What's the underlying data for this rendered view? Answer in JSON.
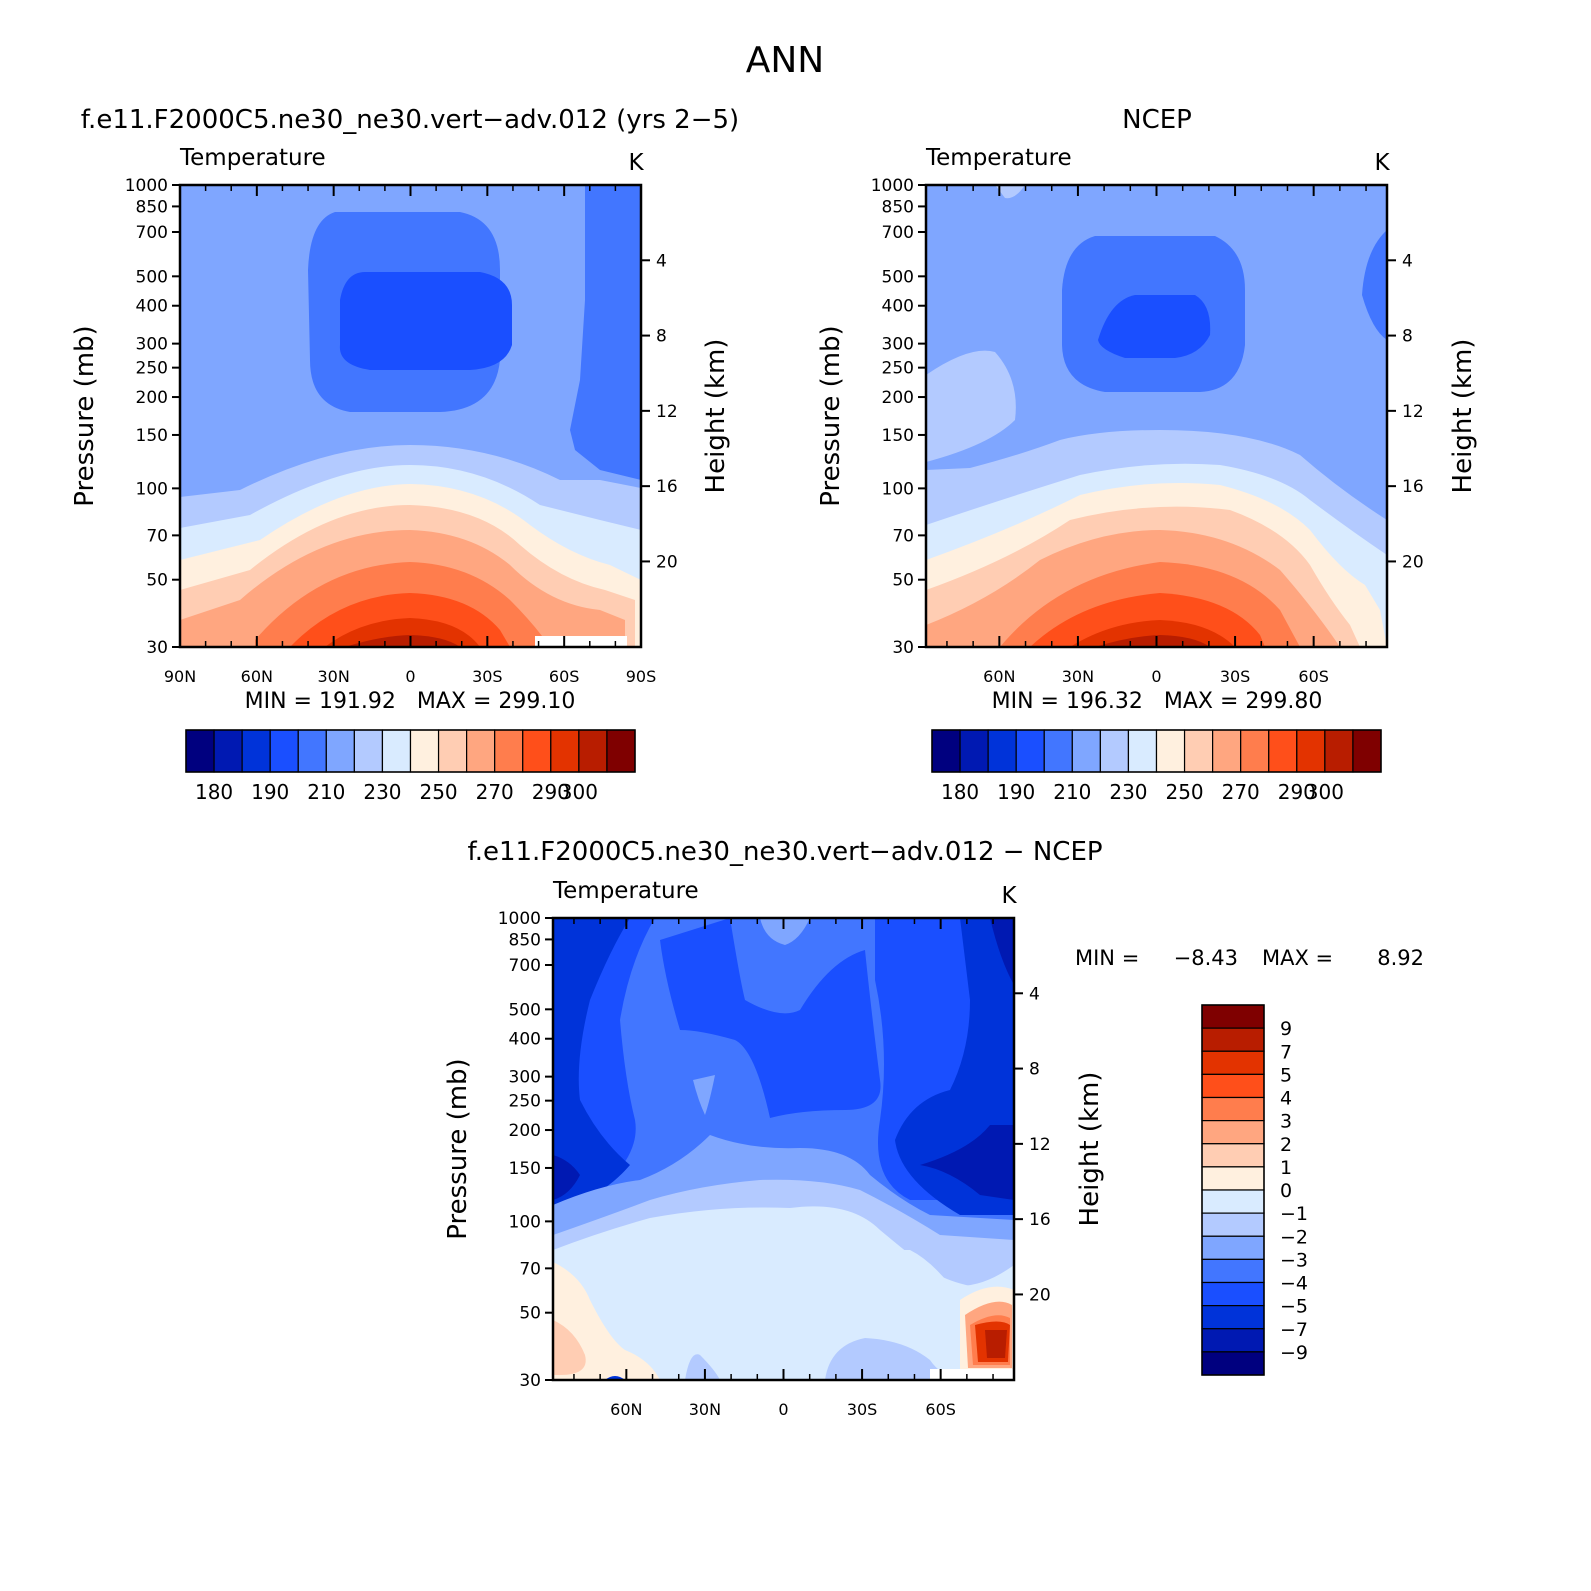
{
  "figure_title": "ANN",
  "colors": {
    "temperature_palette": [
      "#00007f",
      "#0019b2",
      "#0033d9",
      "#1a4fff",
      "#4276ff",
      "#7fa6ff",
      "#b3caff",
      "#d9ebff",
      "#fff0df",
      "#ffcdb3",
      "#ffa680",
      "#ff7d4d",
      "#ff4f1a",
      "#e33300",
      "#b81d00",
      "#7f0000"
    ],
    "difference_palette": [
      "#00007f",
      "#0019b2",
      "#0033d9",
      "#1a4fff",
      "#4276ff",
      "#7fa6ff",
      "#b3caff",
      "#d9ebff",
      "#fff0df",
      "#ffcdb3",
      "#ffa680",
      "#ff7d4d",
      "#ff4f1a",
      "#e33300",
      "#b81d00",
      "#7f0000"
    ]
  },
  "chart_data": [
    {
      "type": "heatmap",
      "panel": "model",
      "title": "f.e11.F2000C5.ne30_ne30.vert−adv.012 (yrs 2−5)",
      "subtitle_left": "Temperature",
      "subtitle_right": "K",
      "ylabel": "Pressure (mb)",
      "ylabel_right": "Height (km)",
      "x_tick_labels": [
        "90N",
        "60N",
        "30N",
        "0",
        "30S",
        "60S",
        "90S"
      ],
      "x_tick_values": [
        90,
        60,
        30,
        0,
        -30,
        -60,
        -90
      ],
      "xlim": [
        90,
        -90
      ],
      "y_tick_labels": [
        "30",
        "50",
        "70",
        "100",
        "150",
        "200",
        "250",
        "300",
        "400",
        "500",
        "700",
        "850",
        "1000"
      ],
      "y_tick_values": [
        30,
        50,
        70,
        100,
        150,
        200,
        250,
        300,
        400,
        500,
        700,
        850,
        1000
      ],
      "ylim": [
        1000,
        30
      ],
      "y_scale": "log",
      "height_tick_labels": [
        "20",
        "16",
        "12",
        "8",
        "4"
      ],
      "height_tick_values": [
        20,
        16,
        12,
        8,
        4
      ],
      "stats_text": "MIN = 191.92   MAX = 299.10",
      "min": 191.92,
      "max": 299.1,
      "colorbar": {
        "orientation": "horizontal",
        "labels": [
          "180",
          "190",
          "210",
          "230",
          "250",
          "270",
          "290",
          "300"
        ],
        "levels": [
          180,
          185,
          190,
          200,
          210,
          220,
          230,
          240,
          250,
          260,
          270,
          280,
          290,
          295,
          300
        ]
      }
    },
    {
      "type": "heatmap",
      "panel": "obs",
      "title": "NCEP",
      "subtitle_left": "Temperature",
      "subtitle_right": "K",
      "ylabel": "Pressure (mb)",
      "ylabel_right": "Height (km)",
      "x_tick_labels": [
        "60N",
        "30N",
        "0",
        "30S",
        "60S"
      ],
      "x_tick_values": [
        60,
        30,
        0,
        -30,
        -60
      ],
      "xlim": [
        88,
        -88
      ],
      "y_tick_labels": [
        "30",
        "50",
        "70",
        "100",
        "150",
        "200",
        "250",
        "300",
        "400",
        "500",
        "700",
        "850",
        "1000"
      ],
      "y_tick_values": [
        30,
        50,
        70,
        100,
        150,
        200,
        250,
        300,
        400,
        500,
        700,
        850,
        1000
      ],
      "ylim": [
        1000,
        30
      ],
      "y_scale": "log",
      "height_tick_labels": [
        "20",
        "16",
        "12",
        "8",
        "4"
      ],
      "height_tick_values": [
        20,
        16,
        12,
        8,
        4
      ],
      "stats_text": "MIN = 196.32   MAX = 299.80",
      "min": 196.32,
      "max": 299.8,
      "colorbar": {
        "orientation": "horizontal",
        "labels": [
          "180",
          "190",
          "210",
          "230",
          "250",
          "270",
          "290",
          "300"
        ],
        "levels": [
          180,
          185,
          190,
          200,
          210,
          220,
          230,
          240,
          250,
          260,
          270,
          280,
          290,
          295,
          300
        ]
      }
    },
    {
      "type": "heatmap",
      "panel": "difference",
      "title": "f.e11.F2000C5.ne30_ne30.vert−adv.012 − NCEP",
      "subtitle_left": "Temperature",
      "subtitle_right": "K",
      "ylabel": "Pressure (mb)",
      "ylabel_right": "Height (km)",
      "x_tick_labels": [
        "60N",
        "30N",
        "0",
        "30S",
        "60S"
      ],
      "x_tick_values": [
        60,
        30,
        0,
        -30,
        -60
      ],
      "xlim": [
        88,
        -88
      ],
      "y_tick_labels": [
        "30",
        "50",
        "70",
        "100",
        "150",
        "200",
        "250",
        "300",
        "400",
        "500",
        "700",
        "850",
        "1000"
      ],
      "y_tick_values": [
        30,
        50,
        70,
        100,
        150,
        200,
        250,
        300,
        400,
        500,
        700,
        850,
        1000
      ],
      "ylim": [
        1000,
        30
      ],
      "y_scale": "log",
      "height_tick_labels": [
        "20",
        "16",
        "12",
        "8",
        "4"
      ],
      "height_tick_values": [
        20,
        16,
        12,
        8,
        4
      ],
      "min_label": "MIN =",
      "min_value": "−8.43",
      "max_label": "MAX =",
      "max_value": "8.92",
      "min": -8.43,
      "max": 8.92,
      "colorbar": {
        "orientation": "vertical",
        "labels": [
          "9",
          "7",
          "5",
          "4",
          "3",
          "2",
          "1",
          "0",
          "−1",
          "−2",
          "−3",
          "−4",
          "−5",
          "−7",
          "−9"
        ],
        "levels": [
          9,
          7,
          5,
          4,
          3,
          2,
          1,
          0,
          -1,
          -2,
          -3,
          -4,
          -5,
          -7,
          -9
        ]
      }
    }
  ]
}
